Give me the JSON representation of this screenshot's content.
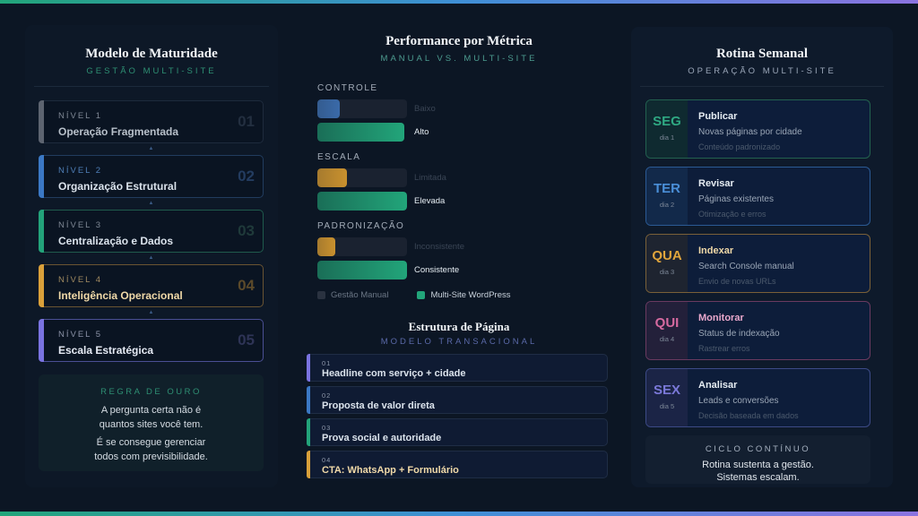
{
  "colors": {
    "accent_green": "#22a57a",
    "accent_blue": "#3f8fd6",
    "accent_purple": "#8b73e0",
    "accent_orange": "#d9a03a",
    "accent_pink": "#d66aa0",
    "background": "#0c1624"
  },
  "maturity": {
    "title": "Modelo de Maturidade",
    "subtitle": "GESTÃO MULTI-SITE",
    "levels": [
      {
        "level": "NÍVEL 1",
        "name": "Operação Fragmentada",
        "num": "01",
        "color": "#5d6470",
        "border": "#1e2b3d",
        "name_color": "#b8c0ca",
        "level_color": "#7f8895",
        "num_color": "#232f40"
      },
      {
        "level": "NÍVEL 2",
        "name": "Organização Estrutural",
        "num": "02",
        "color": "#3b78c4",
        "border": "#213c5e",
        "name_color": "#dbe3ec",
        "level_color": "#4f7fb8",
        "num_color": "#233c60"
      },
      {
        "level": "NÍVEL 3",
        "name": "Centralização e Dados",
        "num": "03",
        "color": "#23a37a",
        "border": "#1f5a4c",
        "name_color": "#dbe3ec",
        "level_color": "#7f8895",
        "num_color": "#1f3a3a"
      },
      {
        "level": "NÍVEL 4",
        "name": "Inteligência Operacional",
        "num": "04",
        "color": "#d9a03a",
        "border": "#6a5432",
        "name_color": "#f0d9a8",
        "level_color": "#a08a60",
        "num_color": "#5c4a2a"
      },
      {
        "level": "NÍVEL 5",
        "name": "Escala Estratégica",
        "num": "05",
        "color": "#7a73e0",
        "border": "#4a4f94",
        "name_color": "#e6ebf5",
        "level_color": "#8c93a8",
        "num_color": "#2e3456"
      }
    ],
    "rule": {
      "title": "REGRA DE OURO",
      "line1": "A pergunta certa não é",
      "line2": "quantos sites você tem.",
      "line3": "É se consegue gerenciar",
      "line4": "todos com previsibilidade."
    }
  },
  "performance": {
    "title": "Performance por Métrica",
    "subtitle": "MANUAL VS. MULTI-SITE",
    "legend": {
      "manual": "Gestão Manual",
      "multisite": "Multi-Site WordPress"
    },
    "manual_color": "#2a3240",
    "multisite_color": "#22a57a"
  },
  "chart_data": {
    "type": "bar",
    "title": "Performance por Métrica",
    "subtitle": "MANUAL VS. MULTI-SITE",
    "categories": [
      "CONTROLE",
      "ESCALA",
      "PADRONIZAÇÃO"
    ],
    "series": [
      {
        "name": "Gestão Manual",
        "values": [
          25,
          33,
          20
        ],
        "labels": [
          "Baixo",
          "Limitada",
          "Inconsistente"
        ],
        "colors": [
          "#3a6aa8",
          "#c9912e",
          "#c9912e"
        ]
      },
      {
        "name": "Multi-Site WordPress",
        "values": [
          97,
          100,
          100
        ],
        "labels": [
          "Alto",
          "Elevada",
          "Consistente"
        ],
        "colors": [
          "#22a57a",
          "#22a57a",
          "#22a57a"
        ]
      }
    ],
    "xlabel": "",
    "ylabel": "",
    "ylim": [
      0,
      100
    ],
    "legend_position": "bottom",
    "grid": false
  },
  "structure": {
    "title": "Estrutura de Página",
    "subtitle": "MODELO TRANSACIONAL",
    "steps": [
      {
        "num": "01",
        "text": "Headline com serviço + cidade",
        "color": "#7a73e0",
        "text_color": "#dbe3ec"
      },
      {
        "num": "02",
        "text": "Proposta de valor direta",
        "color": "#3b78c4",
        "text_color": "#dbe3ec"
      },
      {
        "num": "03",
        "text": "Prova social e autoridade",
        "color": "#23a37a",
        "text_color": "#dbe3ec"
      },
      {
        "num": "04",
        "text": "CTA: WhatsApp + Formulário",
        "color": "#d9a03a",
        "text_color": "#f0d9a8"
      }
    ]
  },
  "routine": {
    "title": "Rotina Semanal",
    "subtitle": "OPERAÇÃO MULTI-SITE",
    "days": [
      {
        "code": "SEG",
        "day": "dia 1",
        "action": "Publicar",
        "desc": "Novas páginas por cidade",
        "note": "Conteúdo padronizado",
        "color": "#2fa882",
        "border": "#23614f",
        "col_bg": "#0f2a30",
        "action_color": "#e6edf3"
      },
      {
        "code": "TER",
        "day": "dia 2",
        "action": "Revisar",
        "desc": "Páginas existentes",
        "note": "Otimização e erros",
        "color": "#4a8fd8",
        "border": "#2b5a94",
        "col_bg": "#12294a",
        "action_color": "#e6edf3"
      },
      {
        "code": "QUA",
        "day": "dia 3",
        "action": "Indexar",
        "desc": "Search Console manual",
        "note": "Envio de novas URLs",
        "color": "#e0a53c",
        "border": "#7a6038",
        "col_bg": "#1e2430",
        "action_color": "#f0d9a8"
      },
      {
        "code": "QUI",
        "day": "dia 4",
        "action": "Monitorar",
        "desc": "Status de indexação",
        "note": "Rastrear erros",
        "color": "#d66aa0",
        "border": "#6a3a60",
        "col_bg": "#23203a",
        "action_color": "#e9a8cc"
      },
      {
        "code": "SEX",
        "day": "dia 5",
        "action": "Analisar",
        "desc": "Leads e conversões",
        "note": "Decisão baseada em dados",
        "color": "#7a78d8",
        "border": "#3c4a86",
        "col_bg": "#1b2446",
        "action_color": "#e6edf3"
      }
    ],
    "cycle": {
      "title": "CICLO CONTÍNUO",
      "line1": "Rotina sustenta a gestão.",
      "line2": "Sistemas escalam."
    }
  }
}
